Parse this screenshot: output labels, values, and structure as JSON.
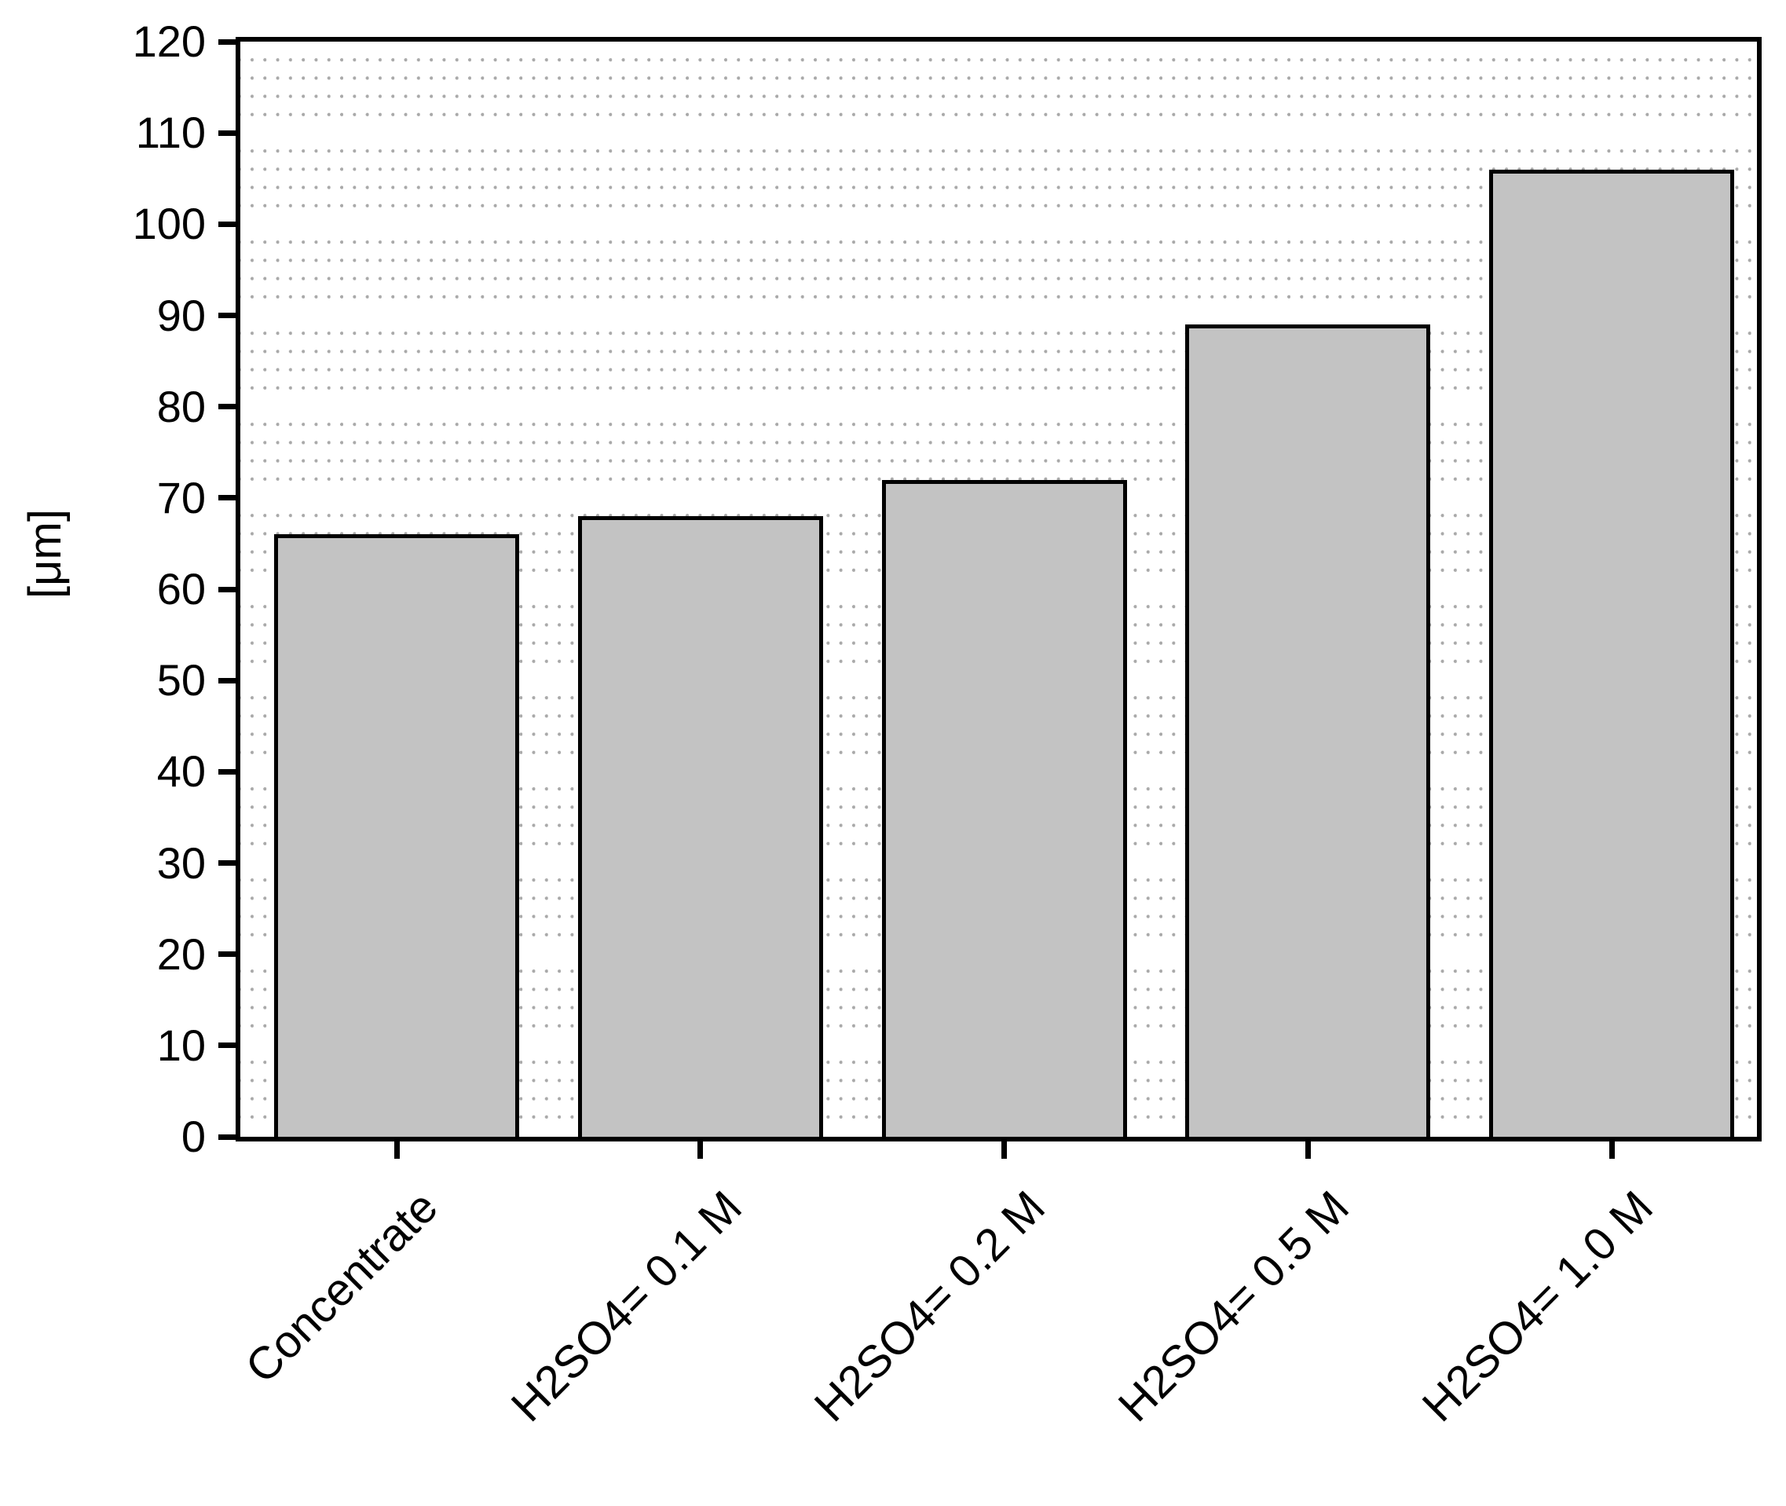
{
  "chart_data": {
    "type": "bar",
    "title": "",
    "xlabel": "",
    "ylabel": "[μm]",
    "categories": [
      "Concentrate",
      "H2SO4= 0.1 M",
      "H2SO4= 0.2 M",
      "H2SO4= 0.5 M",
      "H2SO4= 1.0 M"
    ],
    "values": [
      66,
      68,
      72,
      89,
      106
    ],
    "ylim": [
      0,
      120
    ],
    "ytick_step": 10,
    "ytick_labels": [
      "0",
      "10",
      "20",
      "30",
      "40",
      "50",
      "60",
      "70",
      "80",
      "90",
      "100",
      "110",
      "120"
    ],
    "grid": "dotted horizontal rows every 2 units, row omitted at multiples of 10",
    "legend": "none",
    "colors": {
      "bar_fill": "#c3c3c3",
      "bar_border": "#000000",
      "axis": "#000000",
      "grid_dot": "#a9a9a9",
      "background": "#ffffff"
    }
  }
}
